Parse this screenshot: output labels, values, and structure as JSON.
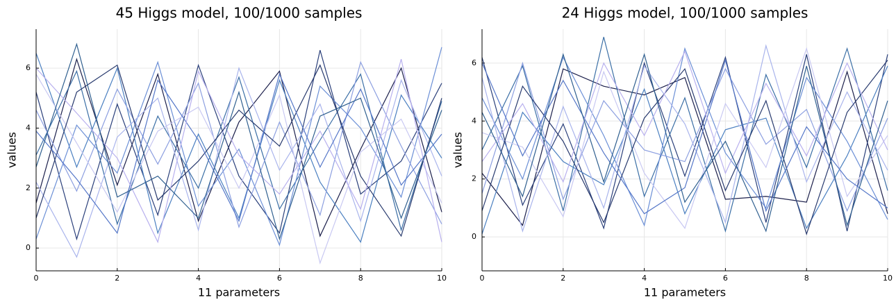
{
  "chart_data": [
    {
      "type": "line",
      "title": "45 Higgs model, 100/1000 samples",
      "x_label": "11 parameters",
      "y_label": "values",
      "x": [
        0,
        1,
        2,
        3,
        4,
        5,
        6,
        7,
        8,
        9,
        10
      ],
      "xlim": [
        0,
        10
      ],
      "xticks": [
        0,
        2,
        4,
        6,
        8,
        10
      ],
      "ylim": [
        -0.76,
        7.3
      ],
      "yticks": [
        0,
        2,
        4,
        6
      ],
      "grid": true,
      "series": [
        {
          "color": "#1b1f4b",
          "values": [
            1.5,
            6.3,
            2.1,
            5.8,
            0.9,
            4.2,
            5.9,
            0.4,
            3.3,
            6.0,
            1.2
          ]
        },
        {
          "color": "#2a3f7a",
          "values": [
            5.2,
            0.3,
            4.8,
            1.1,
            6.1,
            2.4,
            0.5,
            6.6,
            1.8,
            2.9,
            5.5
          ]
        },
        {
          "color": "#3a6ea5",
          "values": [
            3.1,
            5.9,
            0.8,
            4.4,
            2.0,
            5.7,
            1.3,
            3.6,
            5.8,
            0.6,
            4.9
          ]
        },
        {
          "color": "#4a7fc0",
          "values": [
            6.5,
            2.7,
            6.0,
            0.5,
            3.8,
            1.0,
            5.6,
            2.2,
            0.2,
            5.1,
            3.0
          ]
        },
        {
          "color": "#6b8fd6",
          "values": [
            0.3,
            4.1,
            2.5,
            6.2,
            1.4,
            3.3,
            0.1,
            5.4,
            4.0,
            1.7,
            6.7
          ]
        },
        {
          "color": "#8c9fe0",
          "values": [
            4.6,
            1.9,
            5.3,
            2.8,
            5.5,
            0.7,
            4.2,
            1.1,
            6.2,
            3.4,
            0.8
          ]
        },
        {
          "color": "#a9b4ec",
          "values": [
            2.2,
            -0.3,
            3.7,
            5.0,
            0.6,
            6.0,
            2.6,
            4.8,
            0.9,
            5.6,
            2.4
          ]
        },
        {
          "color": "#c8c8f2",
          "values": [
            5.8,
            3.5,
            1.2,
            3.9,
            4.7,
            2.0,
            5.1,
            -0.5,
            3.2,
            4.3,
            1.5
          ]
        },
        {
          "color": "#283a6e",
          "values": [
            1.0,
            5.2,
            6.1,
            1.6,
            2.9,
            4.6,
            3.4,
            6.1,
            2.4,
            0.4,
            5.0
          ]
        },
        {
          "color": "#5577c8",
          "values": [
            3.9,
            2.3,
            0.5,
            5.6,
            3.6,
            0.9,
            5.8,
            2.7,
            5.3,
            2.1,
            3.8
          ]
        },
        {
          "color": "#b8b0ee",
          "values": [
            6.0,
            4.5,
            3.0,
            0.2,
            5.9,
            3.1,
            1.8,
            3.9,
            1.3,
            6.3,
            0.2
          ]
        },
        {
          "color": "#2f5f8f",
          "values": [
            2.7,
            6.8,
            1.7,
            2.4,
            1.0,
            5.2,
            0.3,
            4.4,
            5.0,
            1.0,
            4.6
          ]
        }
      ]
    },
    {
      "type": "line",
      "title": "24 Higgs model, 100/1000 samples",
      "x_label": "11 parameters",
      "y_label": "values",
      "x": [
        0,
        1,
        2,
        3,
        4,
        5,
        6,
        7,
        8,
        9,
        10
      ],
      "xlim": [
        0,
        10
      ],
      "xticks": [
        0,
        2,
        4,
        6,
        8,
        10
      ],
      "ylim": [
        -1.17,
        7.17
      ],
      "yticks": [
        0,
        2,
        4,
        6
      ],
      "grid": true,
      "series": [
        {
          "color": "#1b1f4b",
          "values": [
            2.2,
            0.4,
            5.8,
            5.2,
            4.9,
            5.5,
            1.3,
            1.4,
            1.2,
            5.7,
            0.8
          ]
        },
        {
          "color": "#2a3f7a",
          "values": [
            6.2,
            1.1,
            3.9,
            0.3,
            6.0,
            2.1,
            6.2,
            0.5,
            6.3,
            0.2,
            6.3
          ]
        },
        {
          "color": "#3a6ea5",
          "values": [
            3.0,
            5.9,
            0.9,
            6.9,
            1.4,
            4.8,
            0.2,
            5.6,
            2.4,
            6.5,
            1.6
          ]
        },
        {
          "color": "#4a7fc0",
          "values": [
            0.1,
            4.3,
            2.6,
            1.8,
            5.1,
            0.8,
            3.7,
            4.1,
            0.3,
            2.8,
            5.9
          ]
        },
        {
          "color": "#6b8fd6",
          "values": [
            4.8,
            2.0,
            6.2,
            3.5,
            0.4,
            6.5,
            2.9,
            1.0,
            5.5,
            3.3,
            0.6
          ]
        },
        {
          "color": "#8c9fe0",
          "values": [
            1.5,
            6.0,
            1.3,
            4.7,
            3.0,
            2.6,
            5.8,
            3.2,
            4.4,
            0.9,
            4.1
          ]
        },
        {
          "color": "#a9b4ec",
          "values": [
            5.5,
            0.2,
            4.5,
            1.0,
            5.9,
            3.9,
            0.5,
            6.6,
            1.9,
            5.0,
            2.3
          ]
        },
        {
          "color": "#c8c8f2",
          "values": [
            3.6,
            3.1,
            0.7,
            5.7,
            2.2,
            0.3,
            4.6,
            2.4,
            6.5,
            1.4,
            3.5
          ]
        },
        {
          "color": "#283a6e",
          "values": [
            0.9,
            5.2,
            3.3,
            0.5,
            4.1,
            5.8,
            1.6,
            4.7,
            0.1,
            4.3,
            6.1
          ]
        },
        {
          "color": "#5577c8",
          "values": [
            6.0,
            2.8,
            5.4,
            2.9,
            0.8,
            1.7,
            6.1,
            0.9,
            3.8,
            2.0,
            1.0
          ]
        },
        {
          "color": "#b8b0ee",
          "values": [
            2.6,
            4.6,
            1.9,
            6.0,
            3.5,
            6.4,
            2.2,
            5.3,
            2.8,
            6.0,
            3.0
          ]
        },
        {
          "color": "#2f5f8f",
          "values": [
            4.3,
            1.4,
            6.3,
            1.9,
            6.3,
            1.2,
            3.3,
            0.2,
            5.9,
            0.4,
            4.7
          ]
        }
      ]
    }
  ]
}
